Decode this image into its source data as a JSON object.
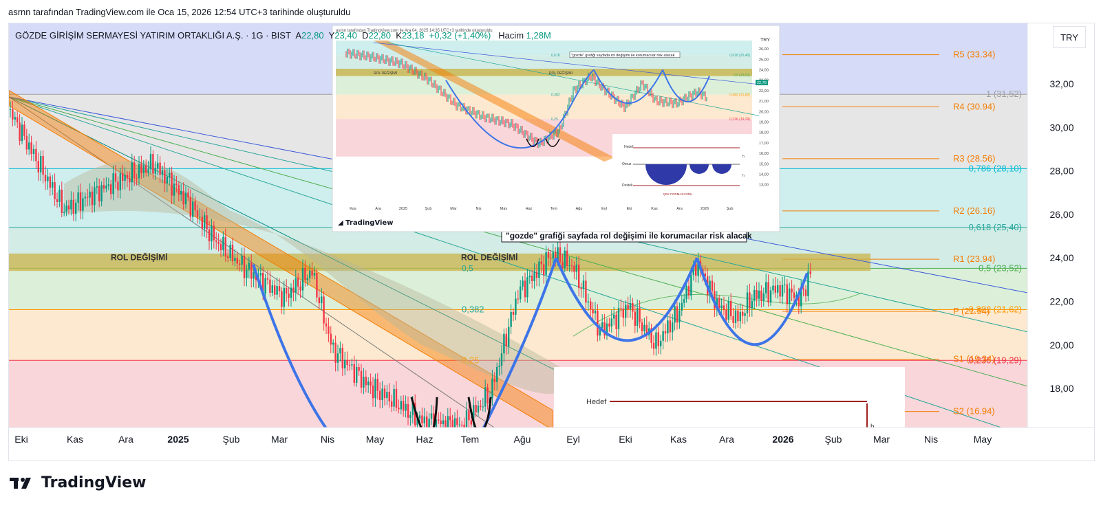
{
  "header": {
    "created_text": "asrnn tarafından TradingView.com ile Oca 15, 2026 12:54 UTC+3 tarihinde oluşturuldu"
  },
  "symbol": {
    "name": "GÖZDE GİRİŞİM SERMAYESİ YATIRIM ORTAKLIĞI A.Ş. · 1G · BIST",
    "open_label": "A",
    "open": "22,80",
    "high_label": "Y",
    "high": "23,40",
    "low_label": "D",
    "low": "22,80",
    "close_label": "K",
    "close": "23,18",
    "change": "+0,32 (+1,40%)",
    "volume_label": "Hacim",
    "volume": "1,28M"
  },
  "currency": "TRY",
  "footer": {
    "logo_text": "TradingView"
  },
  "colors": {
    "candle_up": "#089981",
    "candle_down": "#f23645",
    "cup_line": "#3d74e8",
    "channel": "#f57c00",
    "zone": "#c9b44a",
    "pivot": "#f57c00",
    "fib_teal": "#26a69a"
  },
  "chart_data": {
    "type": "candlestick",
    "x_tick_labels": [
      "Eki",
      "Kas",
      "Ara",
      "2025",
      "Şub",
      "Mar",
      "Nis",
      "May",
      "Haz",
      "Tem",
      "Ağu",
      "Eyl",
      "Eki",
      "Kas",
      "Ara",
      "2026",
      "Şub",
      "Mar",
      "Nis",
      "May"
    ],
    "y_tick_labels": [
      "32,00",
      "30,00",
      "28,00",
      "26,00",
      "24,00",
      "22,00",
      "20,00",
      "18,00"
    ],
    "ylim": [
      16.3,
      34.8
    ],
    "zone_low": 23.4,
    "zone_high": 24.2,
    "fib_levels": [
      {
        "label": "1 (31,52)",
        "value": 31.52
      },
      {
        "label": "0,786 (28,10)",
        "value": 28.1
      },
      {
        "label": "0,618 (25,40)",
        "value": 25.4
      },
      {
        "label": "0,5 (23,52)",
        "value": 23.52
      },
      {
        "label": "0,382 (21,62)",
        "value": 21.62
      },
      {
        "label": "0,236 (19,29)",
        "value": 19.29
      }
    ],
    "pivots": [
      {
        "label": "R5 (33.34)",
        "value": 33.34
      },
      {
        "label": "R4 (30.94)",
        "value": 30.94
      },
      {
        "label": "R3 (28.56)",
        "value": 28.56
      },
      {
        "label": "R2 (26.16)",
        "value": 26.16
      },
      {
        "label": "R1 (23.94)",
        "value": 23.94
      },
      {
        "label": "P (21.54)",
        "value": 21.54
      },
      {
        "label": "S1 (19.34)",
        "value": 19.34
      },
      {
        "label": "S2 (16.94)",
        "value": 16.94
      }
    ],
    "fib_inline_labels": [
      "0,5",
      "0,382",
      "0,25",
      "0,618"
    ],
    "zone_labels": [
      "ROL DEĞİŞİMİ",
      "ROL DEĞİŞİMİ"
    ],
    "annotation": "\"gozde\" grafiği sayfada rol değişimi ile korumacılar risk alacak",
    "last_close": 23.18,
    "inset_chart": {
      "header": "asrnn tarafından TradingView.com ile Ara 04, 2025 14:35 UTC+3 tarihinde oluşturuldu",
      "currency": "TRY",
      "annotation": "\"gozde\" grafiği sayfada rol değişimi ile korumacılar risk alacak",
      "zone_labels": [
        "ROL DEĞİŞİMİ",
        "ROL DEĞİŞİMİ"
      ],
      "fib_labels": [
        "0,618 (25,40)",
        "0,5 (23,52)",
        "0,382 (21,62)",
        "0,236 (19,29)"
      ],
      "inline_labels": [
        "0,618",
        "0,5",
        "0,382",
        "0,25"
      ],
      "y_tick_labels": [
        "26,00",
        "25,00",
        "24,00",
        "23,00",
        "22,00",
        "21,00",
        "20,00",
        "19,00",
        "18,00",
        "17,00",
        "16,00",
        "15,00",
        "14,00",
        "13,00"
      ],
      "x_tick_labels": [
        "Kas",
        "Ara",
        "2025",
        "Şub",
        "Mar",
        "Nis",
        "May",
        "Haz",
        "Tem",
        "Ağu",
        "Eyl",
        "Eki",
        "Kas",
        "Ara",
        "2026",
        "Şub"
      ],
      "price_badge": "22,78",
      "logo_text": "TradingView",
      "diagram_labels": [
        "Hedef",
        "Omuz",
        "Destek",
        "ÇEK FORMASYONU",
        "h",
        "h"
      ]
    },
    "diagram": {
      "label": "Hedef",
      "h_label": "h"
    }
  }
}
